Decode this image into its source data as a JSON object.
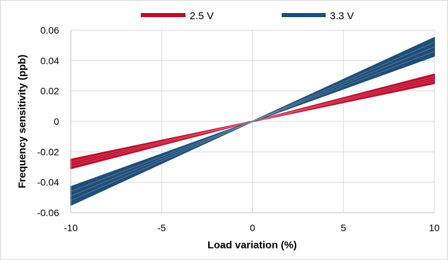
{
  "chart_data": {
    "type": "line",
    "xlabel": "Load variation (%)",
    "ylabel": "Frequency sensitivity (ppb)",
    "xlim": [
      -10,
      10
    ],
    "ylim": [
      -0.06,
      0.06
    ],
    "x_ticks": [
      -10,
      -5,
      0,
      5,
      10
    ],
    "y_ticks": [
      -0.06,
      -0.04,
      -0.02,
      0,
      0.02,
      0.04,
      0.06
    ],
    "x_tick_labels": [
      "-10",
      "-5",
      "0",
      "5",
      "10"
    ],
    "y_tick_labels": [
      "-0.06",
      "-0.04",
      "-0.02",
      "0",
      "0.02",
      "0.04",
      "0.06"
    ],
    "grid": true,
    "legend_position": "top",
    "series": [
      {
        "name": "2.5 V",
        "color": "#c00d2d",
        "slope_min": 0.0025,
        "slope_max": 0.0031,
        "x": [
          -10,
          0,
          10
        ],
        "y_upper": [
          -0.025,
          0,
          0.031
        ],
        "y_lower": [
          -0.031,
          0,
          0.025
        ]
      },
      {
        "name": "3.3 V",
        "color": "#1f4e79",
        "slope_min": 0.0043,
        "slope_max": 0.0055,
        "x": [
          -10,
          0,
          10
        ],
        "y_upper": [
          -0.043,
          0,
          0.055
        ],
        "y_lower": [
          -0.055,
          0,
          0.043
        ]
      }
    ]
  }
}
